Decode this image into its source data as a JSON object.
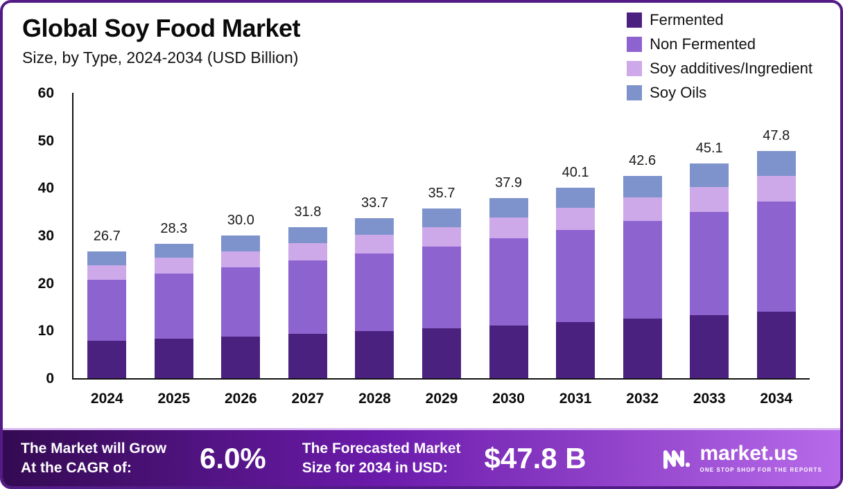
{
  "chart_data": {
    "type": "bar",
    "stacked": true,
    "title": "Global Soy Food Market",
    "subtitle": "Size, by Type, 2024-2034 (USD Billion)",
    "categories": [
      "2024",
      "2025",
      "2026",
      "2027",
      "2028",
      "2029",
      "2030",
      "2031",
      "2032",
      "2033",
      "2034"
    ],
    "totals_labels": [
      "26.7",
      "28.3",
      "30.0",
      "31.8",
      "33.7",
      "35.7",
      "37.9",
      "40.1",
      "42.6",
      "45.1",
      "47.8"
    ],
    "series": [
      {
        "name": "Fermented",
        "color": "#4b2180",
        "values": [
          7.8,
          8.3,
          8.8,
          9.3,
          9.9,
          10.5,
          11.1,
          11.8,
          12.5,
          13.2,
          14.0
        ]
      },
      {
        "name": "Non Fermented",
        "color": "#8d63d0",
        "values": [
          12.9,
          13.7,
          14.5,
          15.4,
          16.3,
          17.2,
          18.3,
          19.4,
          20.6,
          21.8,
          23.1
        ]
      },
      {
        "name": "Soy additives/Ingredient",
        "color": "#cda9ea",
        "values": [
          3.1,
          3.3,
          3.4,
          3.7,
          3.9,
          4.1,
          4.4,
          4.6,
          4.9,
          5.2,
          5.5
        ]
      },
      {
        "name": "Soy Oils",
        "color": "#7e93cb",
        "values": [
          2.9,
          3.0,
          3.3,
          3.4,
          3.6,
          3.9,
          4.1,
          4.3,
          4.6,
          4.9,
          5.2
        ]
      }
    ],
    "ylim": [
      0,
      60
    ],
    "yticks": [
      0,
      10,
      20,
      30,
      40,
      50,
      60
    ],
    "grid": false,
    "legend_position": "top-right"
  },
  "footer": {
    "cagr_label": "The Market will Grow\nAt the CAGR of:",
    "cagr_value": "6.0%",
    "forecast_label": "The Forecasted Market\nSize for 2034 in USD:",
    "forecast_value": "$47.8 B",
    "logo_text": "market.us",
    "logo_tagline": "ONE STOP SHOP FOR THE REPORTS"
  },
  "colors": {
    "frame-border": "#531b86",
    "axis": "#111111",
    "footer-grad-start": "#340a52",
    "footer-grad-mid": "#6b1bab",
    "footer-grad-end": "#b76ae9",
    "footer-top-strip": "#d9b9f2"
  }
}
